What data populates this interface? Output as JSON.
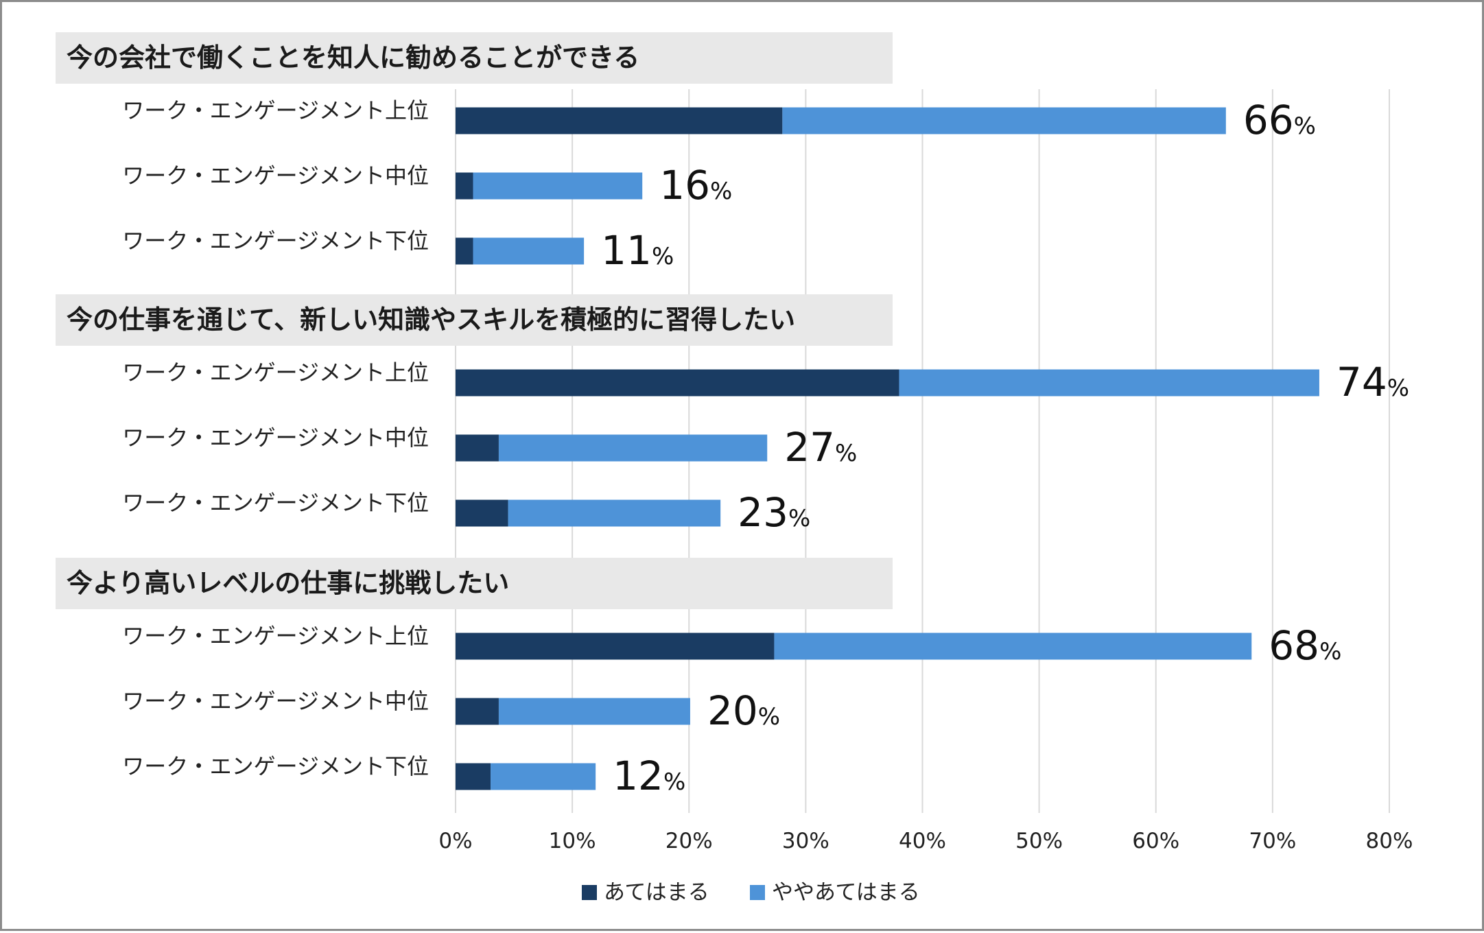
{
  "chart_data": {
    "type": "bar",
    "orientation": "horizontal",
    "stacked": true,
    "xlim": [
      0,
      80
    ],
    "xticks": [
      "0%",
      "10%",
      "20%",
      "30%",
      "40%",
      "50%",
      "60%",
      "70%",
      "80%"
    ],
    "grid": true,
    "legend_position": "bottom",
    "legend": [
      {
        "name": "あてはまる",
        "color": "#1a3c63"
      },
      {
        "name": "ややあてはまる",
        "color": "#4e93d8"
      }
    ],
    "groups": [
      {
        "title": "今の会社で働くことを知人に勧めることができる",
        "rows": [
          {
            "label": "ワーク・エンゲージメント上位",
            "values": [
              28,
              38
            ],
            "total_num": "66",
            "total_unit": "%"
          },
          {
            "label": "ワーク・エンゲージメント中位",
            "values": [
              1.5,
              14.5
            ],
            "total_num": "16",
            "total_unit": "%"
          },
          {
            "label": "ワーク・エンゲージメント下位",
            "values": [
              1.5,
              9.5
            ],
            "total_num": "11",
            "total_unit": "%"
          }
        ]
      },
      {
        "title": "今の仕事を通じて、新しい知識やスキルを積極的に習得したい",
        "rows": [
          {
            "label": "ワーク・エンゲージメント上位",
            "values": [
              38,
              36
            ],
            "total_num": "74",
            "total_unit": "%"
          },
          {
            "label": "ワーク・エンゲージメント中位",
            "values": [
              3.7,
              23
            ],
            "total_num": "27",
            "total_unit": "%"
          },
          {
            "label": "ワーク・エンゲージメント下位",
            "values": [
              4.5,
              18.2
            ],
            "total_num": "23",
            "total_unit": "%"
          }
        ]
      },
      {
        "title": "今より高いレベルの仕事に挑戦したい",
        "rows": [
          {
            "label": "ワーク・エンゲージメント上位",
            "values": [
              27.3,
              40.9
            ],
            "total_num": "68",
            "total_unit": "%"
          },
          {
            "label": "ワーク・エンゲージメント中位",
            "values": [
              3.7,
              16.4
            ],
            "total_num": "20",
            "total_unit": "%"
          },
          {
            "label": "ワーク・エンゲージメント下位",
            "values": [
              3,
              9
            ],
            "total_num": "12",
            "total_unit": "%"
          }
        ]
      }
    ]
  }
}
